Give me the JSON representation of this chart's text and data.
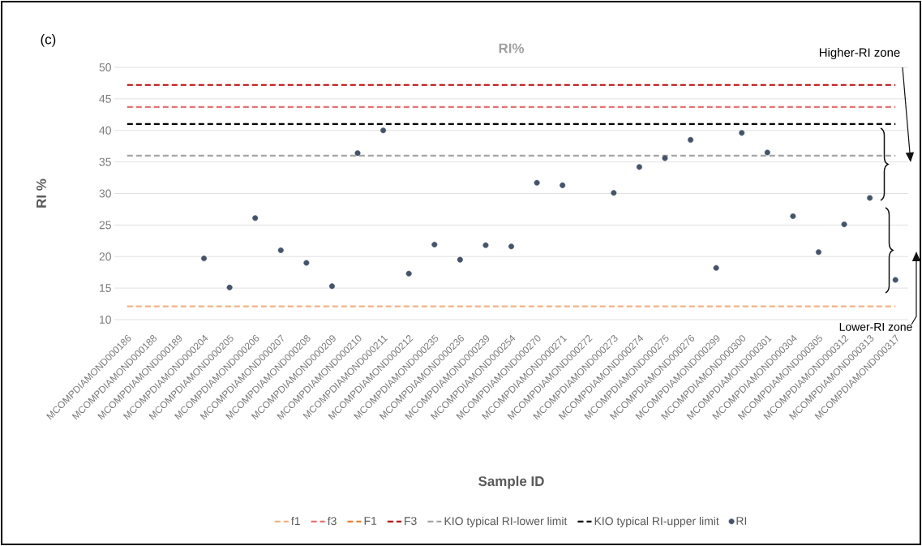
{
  "chart_data": {
    "type": "scatter",
    "title": "RI%",
    "xlabel": "Sample ID",
    "ylabel": "RI %",
    "categories": [
      "MCOMPDIAMOND000186",
      "MCOMPDIAMOND000188",
      "MCOMPDIAMOND000189",
      "MCOMPDIAMOND000204",
      "MCOMPDIAMOND000205",
      "MCOMPDIAMOND000206",
      "MCOMPDIAMOND000207",
      "MCOMPDIAMOND000208",
      "MCOMPDIAMOND000209",
      "MCOMPDIAMOND000210",
      "MCOMPDIAMOND000211",
      "MCOMPDIAMOND000212",
      "MCOMPDIAMOND000235",
      "MCOMPDIAMOND000236",
      "MCOMPDIAMOND000239",
      "MCOMPDIAMOND000254",
      "MCOMPDIAMOND000270",
      "MCOMPDIAMOND000271",
      "MCOMPDIAMOND000272",
      "MCOMPDIAMOND000273",
      "MCOMPDIAMOND000274",
      "MCOMPDIAMOND000275",
      "MCOMPDIAMOND000276",
      "MCOMPDIAMOND000299",
      "MCOMPDIAMOND000300",
      "MCOMPDIAMOND000301",
      "MCOMPDIAMOND000304",
      "MCOMPDIAMOND000305",
      "MCOMPDIAMOND000312",
      "MCOMPDIAMOND000313",
      "MCOMPDIAMOND000317"
    ],
    "series": [
      {
        "name": "f1",
        "type": "line",
        "marker": "none",
        "line_style": "dashed",
        "color": "#f4b183",
        "values": [
          12.1,
          12.1,
          12.1,
          12.1,
          12.1,
          12.1,
          12.1,
          12.1,
          12.1,
          12.1,
          12.1,
          12.1,
          12.1,
          12.1,
          12.1,
          12.1,
          12.1,
          12.1,
          12.1,
          12.1,
          12.1,
          12.1,
          12.1,
          12.1,
          12.1,
          12.1,
          12.1,
          12.1,
          12.1,
          12.1,
          12.1
        ]
      },
      {
        "name": "f3",
        "type": "line",
        "marker": "none",
        "line_style": "dashed",
        "color": "#e87272",
        "values": [
          43.7,
          43.7,
          43.7,
          43.7,
          43.7,
          43.7,
          43.7,
          43.7,
          43.7,
          43.7,
          43.7,
          43.7,
          43.7,
          43.7,
          43.7,
          43.7,
          43.7,
          43.7,
          43.7,
          43.7,
          43.7,
          43.7,
          43.7,
          43.7,
          43.7,
          43.7,
          43.7,
          43.7,
          43.7,
          43.7,
          43.7
        ]
      },
      {
        "name": "F1",
        "type": "line",
        "marker": "none",
        "line_style": "dashed",
        "color": "#ed7d31",
        "values": [
          null,
          null,
          null,
          null,
          null,
          null,
          null,
          null,
          null,
          null,
          null,
          null,
          null,
          null,
          null,
          null,
          null,
          null,
          null,
          null,
          null,
          null,
          null,
          null,
          null,
          null,
          null,
          null,
          null,
          null,
          null
        ]
      },
      {
        "name": "F3",
        "type": "line",
        "marker": "none",
        "line_style": "dashed",
        "color": "#c00000",
        "values": [
          47.2,
          47.2,
          47.2,
          47.2,
          47.2,
          47.2,
          47.2,
          47.2,
          47.2,
          47.2,
          47.2,
          47.2,
          47.2,
          47.2,
          47.2,
          47.2,
          47.2,
          47.2,
          47.2,
          47.2,
          47.2,
          47.2,
          47.2,
          47.2,
          47.2,
          47.2,
          47.2,
          47.2,
          47.2,
          47.2,
          47.2
        ]
      },
      {
        "name": "KIO typical RI-lower limit",
        "type": "line",
        "marker": "none",
        "line_style": "dashed",
        "color": "#a6a6a6",
        "values": [
          36,
          36,
          36,
          36,
          36,
          36,
          36,
          36,
          36,
          36,
          36,
          36,
          36,
          36,
          36,
          36,
          36,
          36,
          36,
          36,
          36,
          36,
          36,
          36,
          36,
          36,
          36,
          36,
          36,
          36,
          36
        ]
      },
      {
        "name": "KIO typical RI-upper limit",
        "type": "line",
        "marker": "none",
        "line_style": "dashed",
        "color": "#000000",
        "values": [
          41,
          41,
          41,
          41,
          41,
          41,
          41,
          41,
          41,
          41,
          41,
          41,
          41,
          41,
          41,
          41,
          41,
          41,
          41,
          41,
          41,
          41,
          41,
          41,
          41,
          41,
          41,
          41,
          41,
          41,
          41
        ]
      },
      {
        "name": "RI",
        "color": "#44546a",
        "values": [
          null,
          null,
          null,
          19.7,
          15.1,
          26.1,
          21.0,
          19.0,
          15.3,
          36.4,
          40.0,
          17.3,
          21.9,
          19.5,
          21.8,
          21.6,
          31.7,
          31.3,
          null,
          30.1,
          34.2,
          35.6,
          38.5,
          18.2,
          39.6,
          36.5,
          26.4,
          20.7,
          25.1,
          29.3,
          16.3
        ]
      }
    ],
    "ylim": [
      10,
      50
    ],
    "yticks": [
      10,
      15,
      20,
      25,
      30,
      35,
      40,
      45,
      50
    ],
    "grid": "y",
    "legend": "bottom",
    "marker": "circle",
    "annotations": [
      "(c)",
      "Higher-RI zone",
      "Lower-RI zone"
    ]
  }
}
